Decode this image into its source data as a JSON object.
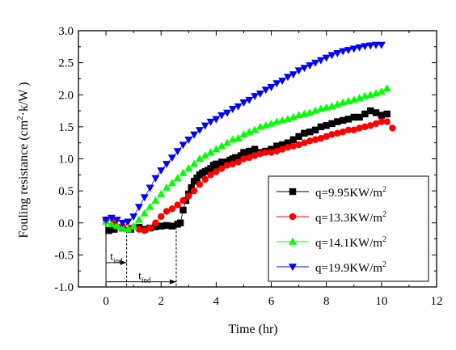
{
  "chart_data": {
    "type": "scatter",
    "title": "",
    "xlabel": "Time (hr)",
    "ylabel": "Fouling resistance  (cm²·k/W)",
    "ylabel_parts": {
      "main": "Fouling resistance  (cm",
      "sup": "2",
      "tail": "·k/W )"
    },
    "xlim": [
      -1,
      12
    ],
    "ylim": [
      -1.0,
      3.0
    ],
    "xticks": [
      0,
      2,
      4,
      6,
      8,
      10,
      12
    ],
    "yticks": [
      -1.0,
      -0.5,
      0.0,
      0.5,
      1.0,
      1.5,
      2.0,
      2.5,
      3.0
    ],
    "ytick_labels": [
      "-1.0",
      "-0.5",
      "0.0",
      "0.5",
      "1.0",
      "1.5",
      "2.0",
      "2.5",
      "3.0"
    ],
    "grid": false,
    "legend_position": "bottom-right",
    "annotations": {
      "tind_label_1": {
        "main": "t",
        "sub": "ind"
      },
      "tind_label_2": {
        "main": "t",
        "sub": "ind"
      },
      "tind_1_end_hr": 0.75,
      "tind_2_end_hr": 2.55
    },
    "series": [
      {
        "name": "q=9.95KW/m²",
        "label_main": "q=9.95KW/m",
        "label_sup": "2",
        "marker": "square",
        "color": "#000000",
        "x": [
          0.1,
          0.3,
          0.6,
          0.9,
          1.2,
          1.4,
          1.6,
          1.8,
          2.0,
          2.2,
          2.4,
          2.6,
          2.7,
          2.8,
          2.9,
          3.0,
          3.1,
          3.2,
          3.3,
          3.4,
          3.5,
          3.6,
          3.7,
          3.8,
          3.9,
          4.0,
          4.1,
          4.2,
          4.3,
          4.4,
          4.5,
          4.6,
          4.7,
          4.8,
          4.9,
          5.0,
          5.1,
          5.2,
          5.4,
          5.6,
          5.8,
          6.0,
          6.2,
          6.4,
          6.6,
          6.8,
          7.0,
          7.2,
          7.4,
          7.6,
          7.8,
          8.0,
          8.2,
          8.4,
          8.6,
          8.8,
          9.0,
          9.2,
          9.4,
          9.6,
          9.8,
          10.0,
          10.2
        ],
        "y": [
          -0.12,
          -0.1,
          -0.08,
          -0.1,
          -0.07,
          -0.1,
          -0.08,
          -0.06,
          -0.05,
          -0.04,
          -0.05,
          -0.02,
          0.0,
          0.2,
          0.35,
          0.45,
          0.55,
          0.65,
          0.7,
          0.75,
          0.78,
          0.8,
          0.82,
          0.85,
          0.9,
          0.92,
          0.9,
          0.95,
          0.93,
          0.95,
          0.98,
          1.0,
          1.02,
          1.0,
          1.05,
          1.1,
          1.08,
          1.12,
          1.15,
          1.1,
          1.12,
          1.15,
          1.2,
          1.22,
          1.25,
          1.3,
          1.35,
          1.4,
          1.42,
          1.45,
          1.5,
          1.52,
          1.55,
          1.58,
          1.6,
          1.62,
          1.65,
          1.65,
          1.7,
          1.75,
          1.72,
          1.68,
          1.7
        ]
      },
      {
        "name": "q=13.3KW/m²",
        "label_main": "q=13.3KW/m",
        "label_sup": "2",
        "marker": "circle",
        "color": "#ff0000",
        "x": [
          0.0,
          0.3,
          0.6,
          0.9,
          1.2,
          1.4,
          1.6,
          1.8,
          2.0,
          2.2,
          2.4,
          2.6,
          2.8,
          3.0,
          3.2,
          3.4,
          3.6,
          3.8,
          4.0,
          4.2,
          4.4,
          4.6,
          4.8,
          5.0,
          5.2,
          5.4,
          5.6,
          5.8,
          6.0,
          6.2,
          6.4,
          6.6,
          6.8,
          7.0,
          7.2,
          7.4,
          7.6,
          7.8,
          8.0,
          8.2,
          8.4,
          8.6,
          8.8,
          9.0,
          9.2,
          9.4,
          9.6,
          9.8,
          10.0,
          10.2,
          10.4
        ],
        "y": [
          0.05,
          0.02,
          -0.05,
          -0.08,
          -0.1,
          -0.12,
          -0.08,
          0.0,
          0.1,
          0.18,
          0.22,
          0.28,
          0.35,
          0.42,
          0.5,
          0.6,
          0.68,
          0.75,
          0.8,
          0.85,
          0.9,
          0.92,
          0.95,
          1.0,
          1.02,
          1.05,
          1.08,
          1.1,
          1.1,
          1.12,
          1.15,
          1.18,
          1.2,
          1.22,
          1.25,
          1.28,
          1.3,
          1.32,
          1.35,
          1.38,
          1.4,
          1.42,
          1.45,
          1.45,
          1.48,
          1.5,
          1.52,
          1.55,
          1.58,
          1.58,
          1.48
        ]
      },
      {
        "name": "q=14.1KW/m²",
        "label_main": "q=14.1KW/m",
        "label_sup": "2",
        "marker": "triangle-up",
        "color": "#00ff00",
        "x": [
          0.0,
          0.2,
          0.4,
          0.6,
          0.8,
          1.0,
          1.2,
          1.4,
          1.6,
          1.8,
          2.0,
          2.2,
          2.4,
          2.6,
          2.8,
          3.0,
          3.2,
          3.4,
          3.6,
          3.8,
          4.0,
          4.2,
          4.4,
          4.6,
          4.8,
          5.0,
          5.2,
          5.4,
          5.6,
          5.8,
          6.0,
          6.2,
          6.4,
          6.6,
          6.8,
          7.0,
          7.2,
          7.4,
          7.6,
          7.8,
          8.0,
          8.2,
          8.4,
          8.6,
          8.8,
          9.0,
          9.2,
          9.4,
          9.6,
          9.8,
          10.0,
          10.2
        ],
        "y": [
          0.02,
          -0.02,
          -0.05,
          -0.08,
          -0.1,
          -0.05,
          0.05,
          0.15,
          0.25,
          0.35,
          0.45,
          0.55,
          0.62,
          0.7,
          0.78,
          0.85,
          0.92,
          1.0,
          1.05,
          1.1,
          1.15,
          1.2,
          1.25,
          1.3,
          1.32,
          1.38,
          1.42,
          1.45,
          1.5,
          1.52,
          1.55,
          1.58,
          1.6,
          1.62,
          1.65,
          1.68,
          1.7,
          1.72,
          1.75,
          1.78,
          1.8,
          1.82,
          1.85,
          1.88,
          1.9,
          1.92,
          1.95,
          1.98,
          2.0,
          2.02,
          2.05,
          2.1
        ]
      },
      {
        "name": "q=19.9KW/m²",
        "label_main": "q=19.9KW/m",
        "label_sup": "2",
        "marker": "triangle-down",
        "color": "#0000ff",
        "x": [
          0.0,
          0.2,
          0.4,
          0.6,
          0.8,
          1.0,
          1.2,
          1.4,
          1.6,
          1.8,
          2.0,
          2.2,
          2.4,
          2.6,
          2.8,
          3.0,
          3.2,
          3.4,
          3.6,
          3.8,
          4.0,
          4.2,
          4.4,
          4.6,
          4.8,
          5.0,
          5.2,
          5.4,
          5.6,
          5.8,
          6.0,
          6.2,
          6.4,
          6.6,
          6.8,
          7.0,
          7.2,
          7.4,
          7.6,
          7.8,
          8.0,
          8.2,
          8.4,
          8.6,
          8.8,
          9.0,
          9.2,
          9.4,
          9.6,
          9.8,
          10.0
        ],
        "y": [
          0.05,
          0.08,
          0.05,
          0.0,
          0.02,
          0.1,
          0.25,
          0.4,
          0.55,
          0.7,
          0.82,
          0.92,
          1.02,
          1.12,
          1.22,
          1.3,
          1.38,
          1.45,
          1.52,
          1.58,
          1.62,
          1.68,
          1.72,
          1.78,
          1.82,
          1.88,
          1.92,
          1.98,
          2.02,
          2.08,
          2.12,
          2.18,
          2.22,
          2.28,
          2.32,
          2.38,
          2.42,
          2.46,
          2.5,
          2.54,
          2.58,
          2.62,
          2.65,
          2.68,
          2.7,
          2.72,
          2.74,
          2.76,
          2.77,
          2.78,
          2.78
        ]
      }
    ]
  }
}
